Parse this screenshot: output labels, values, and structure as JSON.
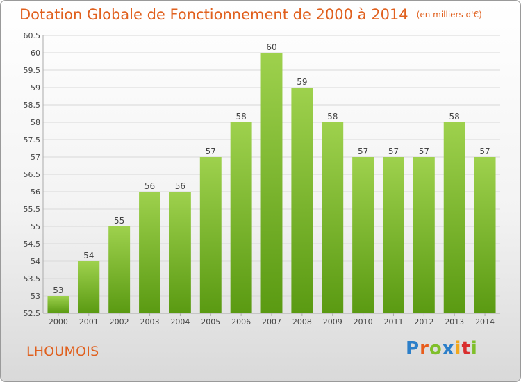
{
  "chart_data": {
    "type": "bar",
    "title": "Dotation Globale de Fonctionnement de 2000 à 2014",
    "subtitle": "(en milliers d'€)",
    "categories": [
      "2000",
      "2001",
      "2002",
      "2003",
      "2004",
      "2005",
      "2006",
      "2007",
      "2008",
      "2009",
      "2010",
      "2011",
      "2012",
      "2013",
      "2014"
    ],
    "values": [
      53,
      54,
      55,
      56,
      56,
      57,
      58,
      60,
      59,
      58,
      57,
      57,
      57,
      58,
      57
    ],
    "value_labels": [
      "53",
      "54",
      "55",
      "56",
      "56",
      "57",
      "58",
      "60",
      "59",
      "58",
      "57",
      "57",
      "57",
      "58",
      "57"
    ],
    "ylim": [
      52.5,
      60.5
    ],
    "y_ticks": [
      52.5,
      53,
      53.5,
      54,
      54.5,
      55,
      55.5,
      56,
      56.5,
      57,
      57.5,
      58,
      58.5,
      59,
      59.5,
      60,
      60.5
    ],
    "y_tick_labels": [
      "52.5",
      "53",
      "53.5",
      "54",
      "54.5",
      "55",
      "55.5",
      "56",
      "56.5",
      "57",
      "57.5",
      "58",
      "58.5",
      "59",
      "59.5",
      "60",
      "60.5"
    ],
    "grid": true,
    "bar_color_top": "#9ed14d",
    "bar_color_bottom": "#5a9a12"
  },
  "commune": "LHOUMOIS",
  "logo": {
    "letters": [
      "P",
      "r",
      "o",
      "x",
      "i",
      "t",
      "i"
    ]
  }
}
